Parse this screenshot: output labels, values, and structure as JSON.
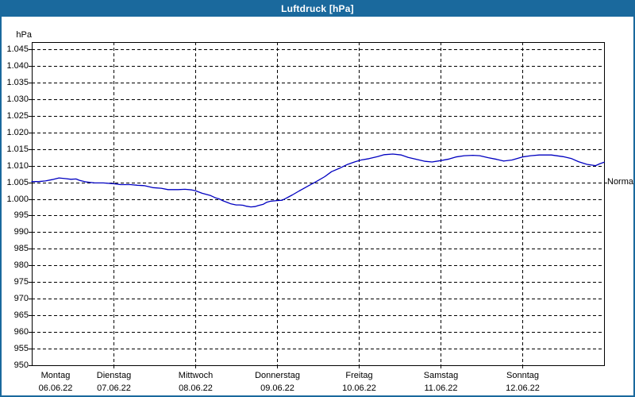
{
  "window": {
    "title": "Luftdruck [hPa]"
  },
  "colors": {
    "frame_blue": "#1a699d",
    "title_text": "#ffffff",
    "curve_blue": "#0000c0",
    "grid_black": "#000000",
    "plot_background": "#ffffff"
  },
  "chart_data": {
    "type": "line",
    "title": "Luftdruck [hPa]",
    "unit_label": "hPa",
    "grid": "dashed, horizontal every 5 hPa, vertical at each midnight",
    "legend_position": "none",
    "y_axis": {
      "min": 950,
      "max": 1045,
      "step": 5,
      "tick_labels": [
        "1.045",
        "1.040",
        "1.035",
        "1.030",
        "1.025",
        "1.020",
        "1.015",
        "1.010",
        "1.005",
        "1.000",
        "995",
        "990",
        "985",
        "980",
        "975",
        "970",
        "965",
        "960",
        "955",
        "950"
      ]
    },
    "x_axis": {
      "span_hours": 168,
      "days": [
        {
          "name": "Montag",
          "date": "06.06.22"
        },
        {
          "name": "Dienstag",
          "date": "07.06.22"
        },
        {
          "name": "Mittwoch",
          "date": "08.06.22"
        },
        {
          "name": "Donnerstag",
          "date": "09.06.22"
        },
        {
          "name": "Freitag",
          "date": "10.06.22"
        },
        {
          "name": "Samstag",
          "date": "11.06.22"
        },
        {
          "name": "Sonntag",
          "date": "12.06.22"
        }
      ]
    },
    "normal_marker": {
      "label": "Normal",
      "value": 1005
    },
    "series": [
      {
        "name": "Luftdruck",
        "color": "#0000c0",
        "points_hours_hpa": [
          [
            0,
            1005.2
          ],
          [
            2,
            1005.2
          ],
          [
            4,
            1005.4
          ],
          [
            6,
            1005.8
          ],
          [
            8,
            1006.3
          ],
          [
            10,
            1006.1
          ],
          [
            11.5,
            1005.9
          ],
          [
            13,
            1006.0
          ],
          [
            14,
            1005.6
          ],
          [
            16,
            1005.1
          ],
          [
            18.5,
            1004.8
          ],
          [
            21,
            1004.8
          ],
          [
            24,
            1004.6
          ],
          [
            26,
            1004.3
          ],
          [
            29,
            1004.3
          ],
          [
            31,
            1004.1
          ],
          [
            33,
            1004.0
          ],
          [
            35.5,
            1003.4
          ],
          [
            38,
            1003.2
          ],
          [
            40,
            1002.8
          ],
          [
            43,
            1002.8
          ],
          [
            45,
            1002.9
          ],
          [
            47,
            1002.7
          ],
          [
            48,
            1002.5
          ],
          [
            50,
            1001.7
          ],
          [
            52.5,
            1001.0
          ],
          [
            54,
            1000.3
          ],
          [
            55,
            1000.0
          ],
          [
            56,
            999.5
          ],
          [
            57.5,
            998.9
          ],
          [
            58.5,
            998.5
          ],
          [
            60,
            998.2
          ],
          [
            61,
            998.2
          ],
          [
            62,
            998.1
          ],
          [
            63,
            997.8
          ],
          [
            64.3,
            997.6
          ],
          [
            65.5,
            997.7
          ],
          [
            66.5,
            998.0
          ],
          [
            68,
            998.4
          ],
          [
            69,
            999.0
          ],
          [
            70,
            999.3
          ],
          [
            72,
            999.5
          ],
          [
            73.5,
            999.6
          ],
          [
            74.5,
            1000.1
          ],
          [
            76.5,
            1001.2
          ],
          [
            78.5,
            1002.4
          ],
          [
            81,
            1003.8
          ],
          [
            83.5,
            1005.2
          ],
          [
            86,
            1006.7
          ],
          [
            88,
            1008.2
          ],
          [
            90.5,
            1009.3
          ],
          [
            92.5,
            1010.3
          ],
          [
            95,
            1011.2
          ],
          [
            96.7,
            1011.7
          ],
          [
            99,
            1012.1
          ],
          [
            101.5,
            1012.7
          ],
          [
            103.5,
            1013.3
          ],
          [
            106,
            1013.5
          ],
          [
            108.5,
            1013.2
          ],
          [
            110.5,
            1012.5
          ],
          [
            113,
            1011.9
          ],
          [
            115.5,
            1011.3
          ],
          [
            117.5,
            1011.1
          ],
          [
            120,
            1011.5
          ],
          [
            122.5,
            1012.0
          ],
          [
            124.5,
            1012.6
          ],
          [
            127,
            1013.0
          ],
          [
            129.5,
            1013.1
          ],
          [
            131.5,
            1013.0
          ],
          [
            134,
            1012.4
          ],
          [
            136.5,
            1011.9
          ],
          [
            138.5,
            1011.4
          ],
          [
            141,
            1011.7
          ],
          [
            144,
            1012.6
          ],
          [
            146.5,
            1013.0
          ],
          [
            149,
            1013.2
          ],
          [
            152.5,
            1013.2
          ],
          [
            156,
            1012.7
          ],
          [
            158.5,
            1012.1
          ],
          [
            160.5,
            1011.2
          ],
          [
            163,
            1010.4
          ],
          [
            165.5,
            1010.0
          ],
          [
            166.8,
            1010.6
          ],
          [
            168,
            1011.0
          ]
        ]
      }
    ]
  }
}
